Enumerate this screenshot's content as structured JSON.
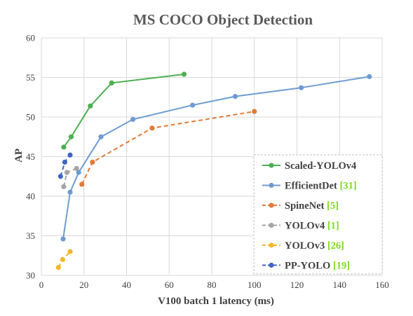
{
  "chart_data": {
    "type": "line",
    "title": "MS COCO Object Detection",
    "xlabel": "V100 batch 1 latency (ms)",
    "ylabel": "AP",
    "xlim": [
      0,
      160
    ],
    "ylim": [
      30,
      60
    ],
    "xticks": [
      "0",
      "20",
      "40",
      "60",
      "80",
      "100",
      "120",
      "140",
      "160"
    ],
    "yticks": [
      "30",
      "35",
      "40",
      "45",
      "50",
      "55",
      "60"
    ],
    "grid": true,
    "legend_position": "bottom-right",
    "series": [
      {
        "name": "Scaled-YOLOv4",
        "ref": "",
        "color": "#4caf50",
        "dash": "solid",
        "points": [
          [
            10.5,
            46.2
          ],
          [
            14,
            47.5
          ],
          [
            23,
            51.4
          ],
          [
            33,
            54.3
          ],
          [
            67,
            55.4
          ]
        ]
      },
      {
        "name": "EfficientDet",
        "ref": "[31]",
        "color": "#6e9bd1",
        "dash": "solid",
        "points": [
          [
            10.2,
            34.6
          ],
          [
            13.5,
            40.5
          ],
          [
            17.5,
            43.0
          ],
          [
            28,
            47.5
          ],
          [
            43,
            49.7
          ],
          [
            71,
            51.5
          ],
          [
            91,
            52.6
          ],
          [
            122,
            53.7
          ],
          [
            154,
            55.1
          ]
        ]
      },
      {
        "name": "SpineNet",
        "ref": "[5]",
        "color": "#e07b39",
        "dash": "dashed",
        "points": [
          [
            19,
            41.5
          ],
          [
            24,
            44.3
          ],
          [
            52,
            48.6
          ],
          [
            100,
            50.7
          ]
        ]
      },
      {
        "name": "YOLOv4",
        "ref": "[1]",
        "color": "#a5a5a5",
        "dash": "dashed",
        "points": [
          [
            10.5,
            41.2
          ],
          [
            12,
            43.0
          ],
          [
            16.5,
            43.5
          ]
        ]
      },
      {
        "name": "YOLOv3",
        "ref": "[26]",
        "color": "#f2b72b",
        "dash": "dashed",
        "points": [
          [
            8,
            31.0
          ],
          [
            10,
            32.0
          ],
          [
            13.5,
            33.0
          ]
        ]
      },
      {
        "name": "PP-YOLO",
        "ref": "[19]",
        "color": "#4066c2",
        "dash": "dashed",
        "points": [
          [
            9,
            42.5
          ],
          [
            11,
            44.3
          ],
          [
            13.5,
            45.2
          ]
        ]
      }
    ]
  }
}
